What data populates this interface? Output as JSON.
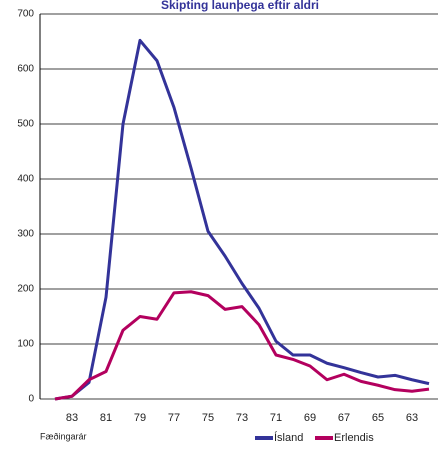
{
  "chart_data": {
    "type": "line",
    "title": "Skipting launþega eftir aldri",
    "x_label": "Fæðingarár",
    "categories": [
      null,
      "83",
      null,
      "81",
      null,
      "79",
      null,
      "77",
      null,
      "75",
      null,
      "73",
      null,
      "71",
      null,
      "69",
      null,
      "67",
      null,
      "65",
      null,
      "63",
      null
    ],
    "series": [
      {
        "name": "Ísland",
        "color": "#333399",
        "values": [
          0,
          5,
          30,
          185,
          500,
          652,
          615,
          530,
          420,
          305,
          260,
          210,
          165,
          105,
          80,
          80,
          65,
          57,
          48,
          40,
          43,
          35,
          28
        ]
      },
      {
        "name": "Erlendis",
        "color": "#b3005e",
        "values": [
          0,
          5,
          35,
          50,
          125,
          150,
          145,
          193,
          195,
          188,
          163,
          168,
          135,
          80,
          72,
          60,
          35,
          45,
          32,
          25,
          17,
          14,
          18
        ]
      }
    ],
    "ylim": [
      0,
      700
    ],
    "yticks": [
      0,
      100,
      200,
      300,
      400,
      500,
      600,
      700
    ],
    "grid": true
  }
}
